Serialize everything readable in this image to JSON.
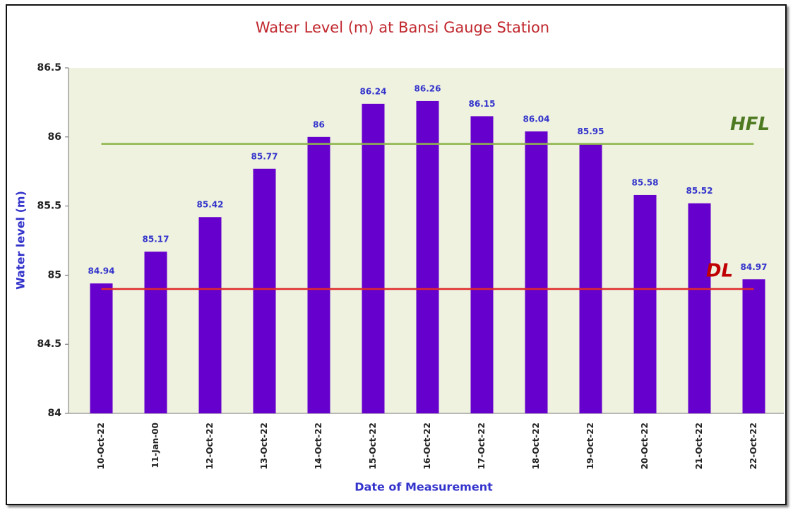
{
  "chart_data": {
    "type": "bar",
    "title": "Water Level (m) at Bansi Gauge Station",
    "x_label": "Date of Measurement",
    "y_label": "Water level (m)",
    "categories": [
      "10-Oct-22",
      "11-Jan-00",
      "12-Oct-22",
      "13-Oct-22",
      "14-Oct-22",
      "15-Oct-22",
      "16-Oct-22",
      "17-Oct-22",
      "18-Oct-22",
      "19-Oct-22",
      "20-Oct-22",
      "21-Oct-22",
      "22-Oct-22"
    ],
    "values": [
      84.94,
      85.17,
      85.42,
      85.77,
      86,
      86.24,
      86.26,
      86.15,
      86.04,
      85.95,
      85.58,
      85.52,
      84.97
    ],
    "color": "#6600cc",
    "ylim": [
      84,
      86.5
    ],
    "yticks": [
      84,
      84.5,
      85,
      85.5,
      86,
      86.5
    ],
    "reference_lines": [
      {
        "label": "HFL",
        "value": 85.95,
        "color": "#8db54a"
      },
      {
        "label": "DL",
        "value": 84.9,
        "color": "#e0282a"
      }
    ]
  }
}
